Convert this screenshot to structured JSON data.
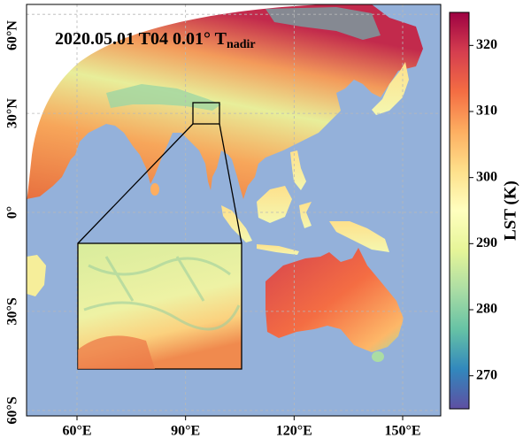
{
  "title": {
    "main": "2020.05.01 T04 0.01° T",
    "subscript": "nadir"
  },
  "map": {
    "lon_ticks": [
      {
        "value": 60,
        "label": "60°E"
      },
      {
        "value": 90,
        "label": "90°E"
      },
      {
        "value": 120,
        "label": "120°E"
      },
      {
        "value": 150,
        "label": "150°E"
      }
    ],
    "lat_ticks": [
      {
        "value": 60,
        "label": "60°N"
      },
      {
        "value": 30,
        "label": "30°N"
      },
      {
        "value": 0,
        "label": "0°"
      },
      {
        "value": -30,
        "label": "30°S"
      },
      {
        "value": -60,
        "label": "60°S"
      }
    ],
    "grid": true
  },
  "colorbar": {
    "label": "LST (K)",
    "lim": [
      265,
      325
    ],
    "ticks": [
      270,
      280,
      290,
      300,
      310,
      320
    ],
    "colors": [
      "#5e4fa2",
      "#3288bd",
      "#66c2a5",
      "#abdda4",
      "#e6f598",
      "#ffffbf",
      "#fee08b",
      "#fdae61",
      "#f46d43",
      "#d53e4f",
      "#9e0142"
    ]
  }
}
